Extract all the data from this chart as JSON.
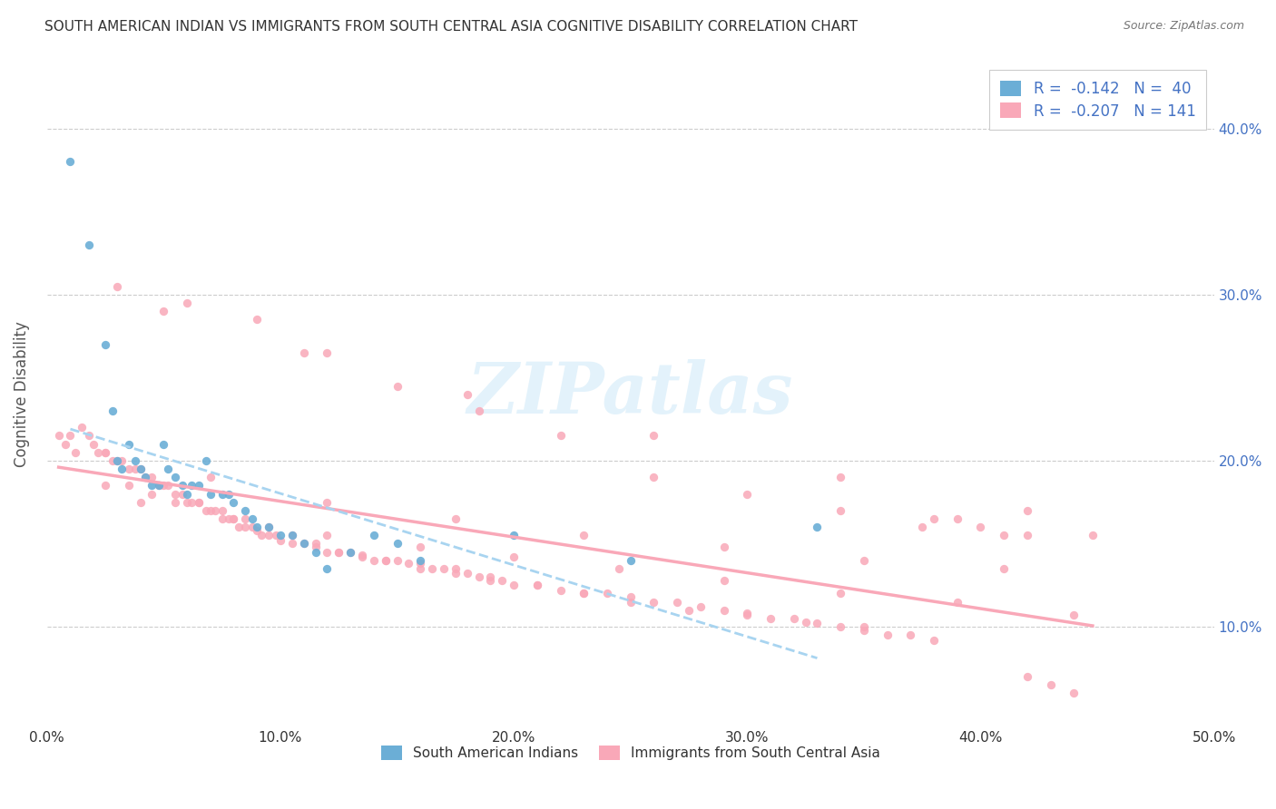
{
  "title": "SOUTH AMERICAN INDIAN VS IMMIGRANTS FROM SOUTH CENTRAL ASIA COGNITIVE DISABILITY CORRELATION CHART",
  "source": "Source: ZipAtlas.com",
  "ylabel": "Cognitive Disability",
  "xlim": [
    0.0,
    0.5
  ],
  "ylim": [
    0.04,
    0.44
  ],
  "ytick_vals": [
    0.1,
    0.2,
    0.3,
    0.4
  ],
  "ytick_labels": [
    "10.0%",
    "20.0%",
    "30.0%",
    "40.0%"
  ],
  "color_blue": "#6baed6",
  "color_pink": "#f9a8b8",
  "trendline_blue": "#a8d4f0",
  "trendline_pink": "#f9a8b8",
  "background_color": "#ffffff",
  "watermark": "ZIPatlas",
  "series1_label": "South American Indians",
  "series2_label": "Immigrants from South Central Asia",
  "blue_x": [
    0.01,
    0.018,
    0.025,
    0.028,
    0.03,
    0.032,
    0.035,
    0.038,
    0.04,
    0.042,
    0.045,
    0.048,
    0.05,
    0.052,
    0.055,
    0.058,
    0.06,
    0.062,
    0.065,
    0.068,
    0.07,
    0.075,
    0.078,
    0.08,
    0.085,
    0.088,
    0.09,
    0.095,
    0.1,
    0.105,
    0.11,
    0.115,
    0.12,
    0.13,
    0.14,
    0.15,
    0.16,
    0.2,
    0.25,
    0.33
  ],
  "blue_y": [
    0.38,
    0.33,
    0.27,
    0.23,
    0.2,
    0.195,
    0.21,
    0.2,
    0.195,
    0.19,
    0.185,
    0.185,
    0.21,
    0.195,
    0.19,
    0.185,
    0.18,
    0.185,
    0.185,
    0.2,
    0.18,
    0.18,
    0.18,
    0.175,
    0.17,
    0.165,
    0.16,
    0.16,
    0.155,
    0.155,
    0.15,
    0.145,
    0.135,
    0.145,
    0.155,
    0.15,
    0.14,
    0.155,
    0.14,
    0.16
  ],
  "pink_x": [
    0.005,
    0.008,
    0.01,
    0.012,
    0.015,
    0.018,
    0.02,
    0.022,
    0.025,
    0.028,
    0.03,
    0.032,
    0.035,
    0.038,
    0.04,
    0.042,
    0.045,
    0.048,
    0.05,
    0.052,
    0.055,
    0.058,
    0.06,
    0.062,
    0.065,
    0.068,
    0.07,
    0.072,
    0.075,
    0.078,
    0.08,
    0.082,
    0.085,
    0.088,
    0.09,
    0.092,
    0.095,
    0.098,
    0.1,
    0.105,
    0.11,
    0.115,
    0.12,
    0.125,
    0.13,
    0.135,
    0.14,
    0.145,
    0.15,
    0.155,
    0.16,
    0.165,
    0.17,
    0.175,
    0.18,
    0.185,
    0.19,
    0.195,
    0.2,
    0.21,
    0.22,
    0.23,
    0.24,
    0.25,
    0.26,
    0.27,
    0.28,
    0.29,
    0.3,
    0.31,
    0.32,
    0.33,
    0.34,
    0.35,
    0.36,
    0.37,
    0.38,
    0.39,
    0.4,
    0.41,
    0.42,
    0.43,
    0.44,
    0.448,
    0.025,
    0.035,
    0.045,
    0.055,
    0.065,
    0.075,
    0.085,
    0.095,
    0.105,
    0.115,
    0.125,
    0.135,
    0.145,
    0.16,
    0.175,
    0.19,
    0.21,
    0.23,
    0.25,
    0.275,
    0.3,
    0.325,
    0.35,
    0.375,
    0.03,
    0.06,
    0.09,
    0.12,
    0.15,
    0.185,
    0.22,
    0.26,
    0.3,
    0.34,
    0.38,
    0.42,
    0.04,
    0.08,
    0.12,
    0.16,
    0.2,
    0.245,
    0.29,
    0.34,
    0.39,
    0.44,
    0.025,
    0.07,
    0.12,
    0.175,
    0.23,
    0.29,
    0.35,
    0.41,
    0.05,
    0.11,
    0.18,
    0.26,
    0.34,
    0.42
  ],
  "pink_y": [
    0.215,
    0.21,
    0.215,
    0.205,
    0.22,
    0.215,
    0.21,
    0.205,
    0.205,
    0.2,
    0.2,
    0.2,
    0.195,
    0.195,
    0.195,
    0.19,
    0.19,
    0.185,
    0.185,
    0.185,
    0.18,
    0.18,
    0.175,
    0.175,
    0.175,
    0.17,
    0.17,
    0.17,
    0.165,
    0.165,
    0.165,
    0.16,
    0.16,
    0.16,
    0.158,
    0.155,
    0.155,
    0.155,
    0.152,
    0.15,
    0.15,
    0.148,
    0.145,
    0.145,
    0.145,
    0.142,
    0.14,
    0.14,
    0.14,
    0.138,
    0.138,
    0.135,
    0.135,
    0.135,
    0.132,
    0.13,
    0.13,
    0.128,
    0.125,
    0.125,
    0.122,
    0.12,
    0.12,
    0.118,
    0.115,
    0.115,
    0.112,
    0.11,
    0.108,
    0.105,
    0.105,
    0.102,
    0.1,
    0.098,
    0.095,
    0.095,
    0.092,
    0.165,
    0.16,
    0.155,
    0.07,
    0.065,
    0.06,
    0.155,
    0.185,
    0.185,
    0.18,
    0.175,
    0.175,
    0.17,
    0.165,
    0.16,
    0.155,
    0.15,
    0.145,
    0.143,
    0.14,
    0.135,
    0.132,
    0.128,
    0.125,
    0.12,
    0.115,
    0.11,
    0.107,
    0.103,
    0.1,
    0.16,
    0.305,
    0.295,
    0.285,
    0.265,
    0.245,
    0.23,
    0.215,
    0.19,
    0.18,
    0.17,
    0.165,
    0.155,
    0.175,
    0.165,
    0.155,
    0.148,
    0.142,
    0.135,
    0.128,
    0.12,
    0.115,
    0.107,
    0.205,
    0.19,
    0.175,
    0.165,
    0.155,
    0.148,
    0.14,
    0.135,
    0.29,
    0.265,
    0.24,
    0.215,
    0.19,
    0.17
  ]
}
